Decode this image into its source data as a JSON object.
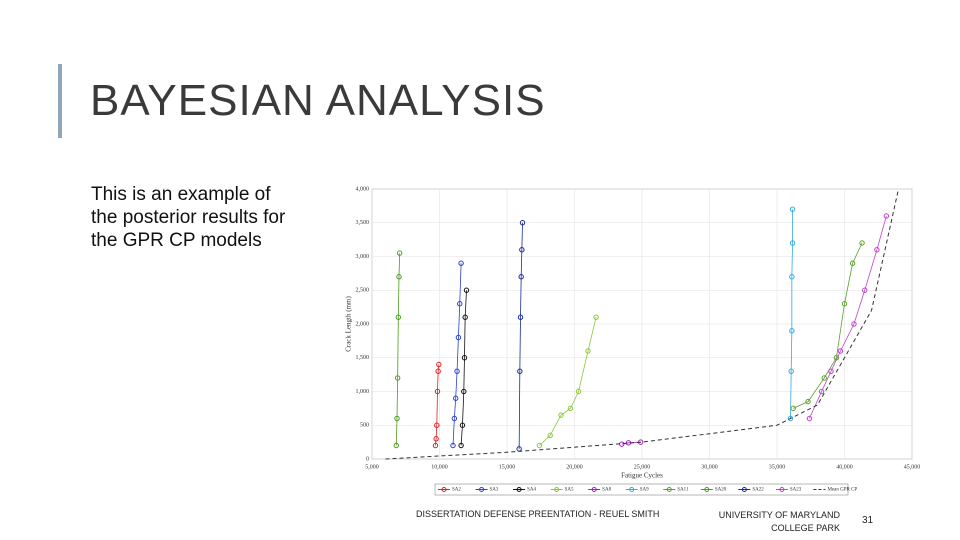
{
  "slide": {
    "title": "BAYESIAN ANALYSIS",
    "body": [
      "This is an example of",
      "the posterior results for",
      "the GPR CP models"
    ],
    "footer": {
      "presentation": "DISSERTATION DEFENSE PREENTATION - REUEL SMITH",
      "university": [
        "UNIVERSITY OF MARYLAND",
        "COLLEGE PARK"
      ],
      "page": "31"
    }
  },
  "chart_data": {
    "type": "line",
    "xlabel": "Fatigue Cycles",
    "ylabel": "Crack Length (mm)",
    "xlim": [
      5000,
      45000
    ],
    "xticks": [
      {
        "value": 5000,
        "label": "5,000"
      },
      {
        "value": 10000,
        "label": "10,000"
      },
      {
        "value": 15000,
        "label": "15,000"
      },
      {
        "value": 20000,
        "label": "20,000"
      },
      {
        "value": 25000,
        "label": "25,000"
      },
      {
        "value": 30000,
        "label": "30,000"
      },
      {
        "value": 35000,
        "label": "35,000"
      },
      {
        "value": 40000,
        "label": "40,000"
      },
      {
        "value": 45000,
        "label": "45,000"
      }
    ],
    "ylim": [
      0,
      4000
    ],
    "yticks": [
      0,
      500,
      {
        "value": 1000,
        "label": "1,000"
      },
      {
        "value": 1500,
        "label": "1,500"
      },
      {
        "value": 2000,
        "label": "2,000"
      },
      {
        "value": 2500,
        "label": "2,500"
      },
      {
        "value": 3000,
        "label": "3,000"
      },
      {
        "value": 3500,
        "label": "3,500"
      },
      {
        "value": 4000,
        "label": "4,000"
      }
    ],
    "grid": true,
    "series": [
      {
        "name": "SA2",
        "color": "#e02020",
        "line": "solid",
        "x": [
          9700,
          9750,
          9800,
          9850,
          9900,
          9950
        ],
        "values": [
          200,
          300,
          500,
          1000,
          1300,
          1400
        ]
      },
      {
        "name": "SA3",
        "color": "#2a3fd0",
        "line": "solid",
        "x": [
          11000,
          11100,
          11200,
          11300,
          11400,
          11500,
          11600
        ],
        "values": [
          200,
          600,
          900,
          1300,
          1800,
          2300,
          2900
        ]
      },
      {
        "name": "SA4",
        "color": "#111111",
        "line": "solid",
        "x": [
          11600,
          11700,
          11800,
          11850,
          11900,
          12000
        ],
        "values": [
          200,
          500,
          1000,
          1500,
          2100,
          2500
        ]
      },
      {
        "name": "SA5",
        "color": "#8cc63f",
        "line": "solid",
        "x": [
          17400,
          18200,
          19000,
          19700,
          20300,
          21000,
          21600
        ],
        "values": [
          200,
          350,
          650,
          750,
          1000,
          1600,
          2100
        ]
      },
      {
        "name": "SA8",
        "color": "#a020c0",
        "line": "solid",
        "x": [
          23500,
          24000,
          24900
        ],
        "values": [
          220,
          240,
          250
        ]
      },
      {
        "name": "SA9",
        "color": "#33aadd",
        "line": "solid",
        "x": [
          36000,
          36050,
          36100,
          36100,
          36150,
          36150
        ],
        "values": [
          600,
          1300,
          1900,
          2700,
          3200,
          3700
        ]
      },
      {
        "name": "SA11",
        "color": "#5aa02c",
        "line": "solid",
        "x": [
          36200,
          37300,
          38500,
          39400,
          40000,
          40600,
          41300
        ],
        "values": [
          750,
          850,
          1200,
          1500,
          2300,
          2900,
          3200
        ]
      },
      {
        "name": "SA20",
        "color": "#4c9a1f",
        "line": "solid",
        "x": [
          6800,
          6850,
          6900,
          6950,
          7000,
          7050
        ],
        "values": [
          200,
          600,
          1200,
          2100,
          2700,
          3050
        ]
      },
      {
        "name": "SA22",
        "color": "#1a2a9a",
        "line": "solid",
        "x": [
          15900,
          15950,
          16000,
          16050,
          16100,
          16150
        ],
        "values": [
          150,
          1300,
          2100,
          2700,
          3100,
          3500
        ]
      },
      {
        "name": "SA23",
        "color": "#c040d0",
        "line": "solid",
        "x": [
          37400,
          38300,
          39000,
          39700,
          40700,
          41500,
          42400,
          43100
        ],
        "values": [
          600,
          1000,
          1300,
          1600,
          2000,
          2500,
          3100,
          3600
        ]
      },
      {
        "name": "Mean GPR CP",
        "color": "#333333",
        "line": "dashed",
        "x": [
          6000,
          15000,
          25000,
          35000,
          38000,
          42000,
          44000
        ],
        "values": [
          0,
          100,
          250,
          500,
          800,
          2200,
          4000
        ]
      }
    ]
  }
}
